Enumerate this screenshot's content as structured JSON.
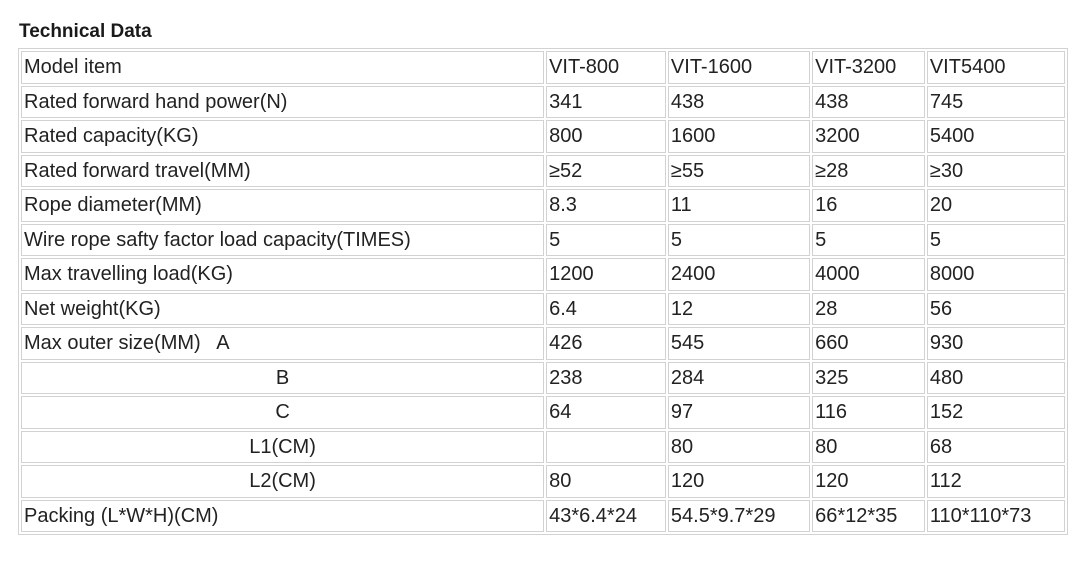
{
  "heading": "Technical Data",
  "table": {
    "rows": [
      {
        "label": "Model item",
        "values": [
          "VIT-800",
          "VIT-1600",
          "VIT-3200",
          "VIT5400"
        ]
      },
      {
        "label": "Rated forward hand power(N)",
        "values": [
          "341",
          "438",
          "438",
          "745"
        ]
      },
      {
        "label": "Rated capacity(KG)",
        "values": [
          "800",
          "1600",
          "3200",
          "5400"
        ]
      },
      {
        "label": "Rated forward travel(MM)",
        "values": [
          "≥52",
          "≥55",
          "≥28",
          "≥30"
        ]
      },
      {
        "label": "Rope diameter(MM)",
        "values": [
          "8.3",
          "11",
          "16",
          "20"
        ]
      },
      {
        "label": "Wire rope safty factor load capacity(TIMES)",
        "values": [
          "5",
          "5",
          "5",
          "5"
        ]
      },
      {
        "label": "Max travelling load(KG)",
        "values": [
          "1200",
          "2400",
          "4000",
          "8000"
        ]
      },
      {
        "label": "Net weight(KG)",
        "values": [
          "6.4",
          "12",
          "28",
          "56"
        ]
      },
      {
        "label": "Max outer size(MM)   A",
        "values": [
          "426",
          "545",
          "660",
          "930"
        ]
      },
      {
        "label": "B",
        "values": [
          "238",
          "284",
          "325",
          "480"
        ]
      },
      {
        "label": "C",
        "values": [
          "64",
          "97",
          "116",
          "152"
        ]
      },
      {
        "label": "L1(CM)",
        "values": [
          "",
          "80",
          "80",
          "68"
        ]
      },
      {
        "label": "L2(CM)",
        "values": [
          "80",
          "120",
          "120",
          "112"
        ]
      },
      {
        "label": "Packing (L*W*H)(CM)",
        "values": [
          "43*6.4*24",
          "54.5*9.7*29",
          "66*12*35",
          "110*110*73"
        ]
      }
    ]
  }
}
